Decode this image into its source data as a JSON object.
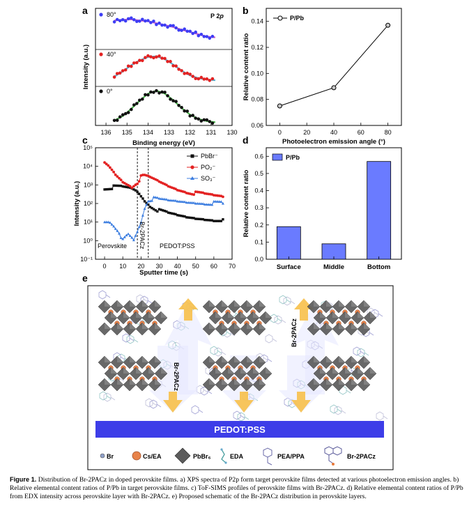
{
  "panels": {
    "a": {
      "letter": "a",
      "title": "P 2p",
      "title_prefix": "P 2",
      "title_italic": "p",
      "ylabel": "Intensity (a.u.)",
      "xlabel": "Binding energy (eV)",
      "xticks": [
        "136",
        "135",
        "134",
        "133",
        "132",
        "131",
        "130"
      ],
      "legends": [
        "80°",
        "40°",
        "0°"
      ]
    },
    "b": {
      "letter": "b",
      "legend": "P/Pb",
      "ylabel": "Relative content ratio",
      "xlabel": "Photoelectron emission angle (°)",
      "yticks": [
        "0.06",
        "0.08",
        "0.10",
        "0.12",
        "0.14"
      ],
      "xticks": [
        "0",
        "20",
        "40",
        "60",
        "80"
      ]
    },
    "c": {
      "letter": "c",
      "ylabel": "Intensity (a.u.)",
      "xlabel": "Sputter time (s)",
      "yticks": [
        "10⁻¹",
        "10⁰",
        "10¹",
        "10²",
        "10³",
        "10⁴",
        "10⁵"
      ],
      "xticks": [
        "0",
        "10",
        "20",
        "30",
        "40",
        "50",
        "60",
        "70"
      ],
      "legends": [
        "PbBr⁻",
        "PO₂⁻",
        "SO₃⁻"
      ],
      "region_labels": [
        "Perovskite",
        "Br-2PACz",
        "PEDOT:PSS"
      ]
    },
    "d": {
      "letter": "d",
      "legend": "P/Pb",
      "ylabel": "Relative content ratio",
      "yticks": [
        "0.0",
        "0.1",
        "0.2",
        "0.3",
        "0.4",
        "0.5",
        "0.6"
      ],
      "categories": [
        "Surface",
        "Middle",
        "Bottom"
      ]
    },
    "e": {
      "letter": "e",
      "substrate": "PEDOT:PSS",
      "arrow_labels": [
        "Br-2PACz",
        "Br-2PACz"
      ],
      "legend": [
        "Br",
        "Cs/EA",
        "PbBr₆",
        "EDA",
        "PEA/PPA",
        "Br-2PACz"
      ]
    }
  },
  "colors": {
    "blue": "#3d3df5",
    "red": "#e32222",
    "green": "#2ea82e",
    "fit": "#33a0c8",
    "bar": "#6a7bff",
    "substrate": "#3d3de8",
    "arrow": "#f7c04a",
    "octa": "#5c5c5c"
  },
  "chart_data": [
    {
      "type": "scatter",
      "panel": "a",
      "xlabel": "Binding energy (eV)",
      "ylabel": "Intensity (a.u.)",
      "xlim": [
        136.5,
        130
      ],
      "series": [
        {
          "name": "80°",
          "x": [
            135.6,
            135.2,
            134.8,
            134.4,
            134.0,
            133.6,
            133.2,
            132.8,
            132.4,
            132.0,
            131.6,
            131.2,
            130.8
          ],
          "y": [
            0.72,
            0.74,
            0.75,
            0.72,
            0.7,
            0.65,
            0.6,
            0.55,
            0.48,
            0.42,
            0.36,
            0.3,
            0.28
          ]
        },
        {
          "name": "40°",
          "x": [
            135.6,
            135.2,
            134.8,
            134.4,
            134.0,
            133.6,
            133.2,
            132.8,
            132.4,
            132.0,
            131.6,
            131.2,
            130.8
          ],
          "y": [
            0.25,
            0.4,
            0.58,
            0.72,
            0.82,
            0.84,
            0.76,
            0.6,
            0.42,
            0.28,
            0.2,
            0.16,
            0.14
          ]
        },
        {
          "name": "0°",
          "x": [
            135.6,
            135.2,
            134.8,
            134.4,
            134.0,
            133.6,
            133.2,
            132.8,
            132.4,
            132.0,
            131.6,
            131.2,
            130.8
          ],
          "y": [
            0.1,
            0.22,
            0.42,
            0.64,
            0.84,
            0.92,
            0.84,
            0.66,
            0.44,
            0.26,
            0.14,
            0.08,
            0.05
          ]
        }
      ]
    },
    {
      "type": "line",
      "panel": "b",
      "xlabel": "Photoelectron emission angle (°)",
      "ylabel": "Relative content ratio",
      "xlim": [
        -10,
        90
      ],
      "ylim": [
        0.06,
        0.15
      ],
      "series": [
        {
          "name": "P/Pb",
          "x": [
            0,
            40,
            80
          ],
          "values": [
            0.075,
            0.089,
            0.137
          ]
        }
      ]
    },
    {
      "type": "line",
      "panel": "c",
      "xlabel": "Sputter time (s)",
      "ylabel": "Intensity (a.u.)",
      "xlim": [
        -5,
        70
      ],
      "ylim": [
        0.1,
        100000
      ],
      "yscale": "log",
      "vlines": [
        18,
        24
      ],
      "series": [
        {
          "name": "PbBr⁻",
          "x": [
            0,
            5,
            10,
            15,
            18,
            20,
            22,
            25,
            30,
            35,
            40,
            45,
            50,
            55,
            60,
            65
          ],
          "values": [
            700,
            750,
            720,
            600,
            420,
            260,
            150,
            80,
            40,
            28,
            22,
            18,
            16,
            15,
            14,
            14
          ]
        },
        {
          "name": "PO₂⁻",
          "x": [
            0,
            3,
            6,
            10,
            15,
            18,
            20,
            22,
            25,
            30,
            35,
            40,
            45,
            50,
            55,
            60,
            65
          ],
          "values": [
            14000,
            8000,
            3500,
            1500,
            800,
            1400,
            2600,
            3000,
            2500,
            1500,
            900,
            600,
            450,
            350,
            300,
            260,
            230
          ]
        },
        {
          "name": "SO₃⁻",
          "x": [
            0,
            3,
            6,
            8,
            10,
            13,
            16,
            18,
            20,
            22,
            24,
            27,
            30,
            35,
            40,
            45,
            50,
            55,
            60,
            65
          ],
          "values": [
            10,
            10,
            5,
            3,
            1,
            2,
            1,
            3,
            10,
            60,
            160,
            180,
            160,
            140,
            130,
            120,
            115,
            110,
            105,
            100
          ]
        }
      ]
    },
    {
      "type": "bar",
      "panel": "d",
      "ylabel": "Relative content ratio",
      "ylim": [
        0,
        0.65
      ],
      "categories": [
        "Surface",
        "Middle",
        "Bottom"
      ],
      "series": [
        {
          "name": "P/Pb",
          "values": [
            0.19,
            0.09,
            0.57
          ]
        }
      ]
    }
  ],
  "caption": {
    "label": "Figure 1.",
    "text": "Distribution of Br-2PACz in doped perovskite films. a) XPS spectra of P2p form target perovskite films detected at various photoelectron emission angles. b) Relative elemental content ratios of P/Pb in target perovskite films. c) ToF-SIMS profiles of perovskite films with Br-2PACz. d) Relative elemental content ratios of P/Pb from EDX intensity across perovskite layer with Br-2PACz. e) Proposed schematic of the Br-2PACz distribution in perovskite layers."
  }
}
